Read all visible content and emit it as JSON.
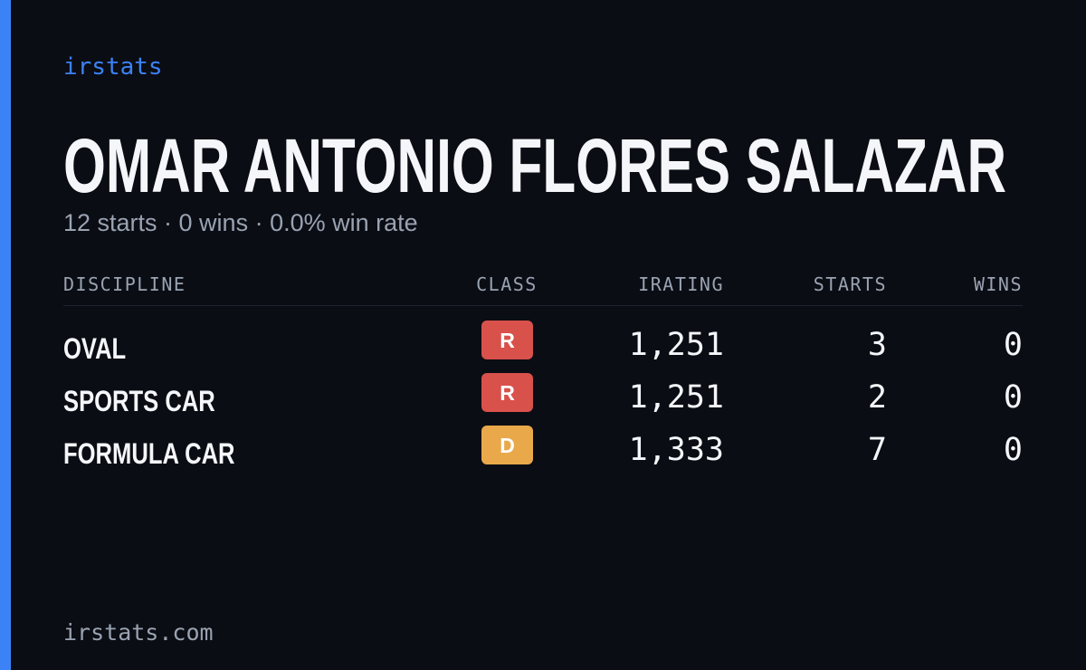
{
  "brand": "irstats",
  "driver": {
    "name": "OMAR ANTONIO FLORES SALAZAR",
    "summary": "12 starts · 0 wins · 0.0% win rate"
  },
  "table": {
    "headers": [
      "DISCIPLINE",
      "CLASS",
      "IRATING",
      "STARTS",
      "WINS"
    ],
    "rows": [
      {
        "discipline": "OVAL",
        "class": "R",
        "class_color": "#d9514b",
        "irating": "1,251",
        "starts": "3",
        "wins": "0"
      },
      {
        "discipline": "SPORTS CAR",
        "class": "R",
        "class_color": "#d9514b",
        "irating": "1,251",
        "starts": "2",
        "wins": "0"
      },
      {
        "discipline": "FORMULA CAR",
        "class": "D",
        "class_color": "#e9a94b",
        "irating": "1,333",
        "starts": "7",
        "wins": "0"
      }
    ]
  },
  "footer": "irstats.com"
}
